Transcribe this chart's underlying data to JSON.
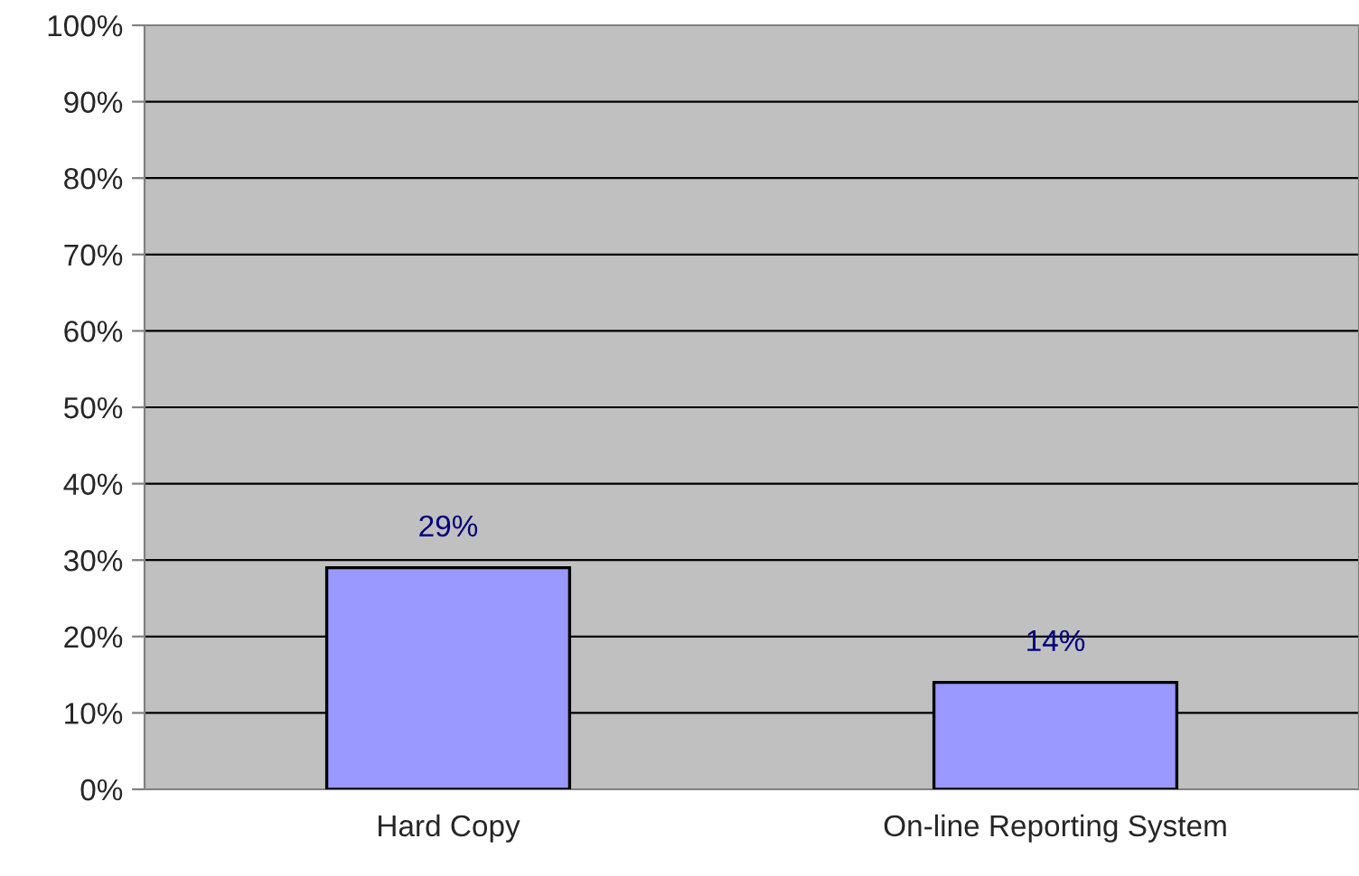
{
  "chart_data": {
    "type": "bar",
    "categories": [
      "Hard Copy",
      "On-line Reporting System"
    ],
    "values": [
      29,
      14
    ],
    "color": "#9999ff",
    "data_labels": true,
    "value_labels": [
      "29%",
      "14%"
    ],
    "ylim": [
      0,
      100
    ],
    "yticks": [
      {
        "value": 0,
        "label": "0%"
      },
      {
        "value": 10,
        "label": "10%"
      },
      {
        "value": 20,
        "label": "20%"
      },
      {
        "value": 30,
        "label": "30%"
      },
      {
        "value": 40,
        "label": "40%"
      },
      {
        "value": 50,
        "label": "50%"
      },
      {
        "value": 60,
        "label": "60%"
      },
      {
        "value": 70,
        "label": "70%"
      },
      {
        "value": 80,
        "label": "80%"
      },
      {
        "value": 90,
        "label": "90%"
      },
      {
        "value": 100,
        "label": "100%"
      }
    ],
    "grid": "y",
    "legend": false
  }
}
